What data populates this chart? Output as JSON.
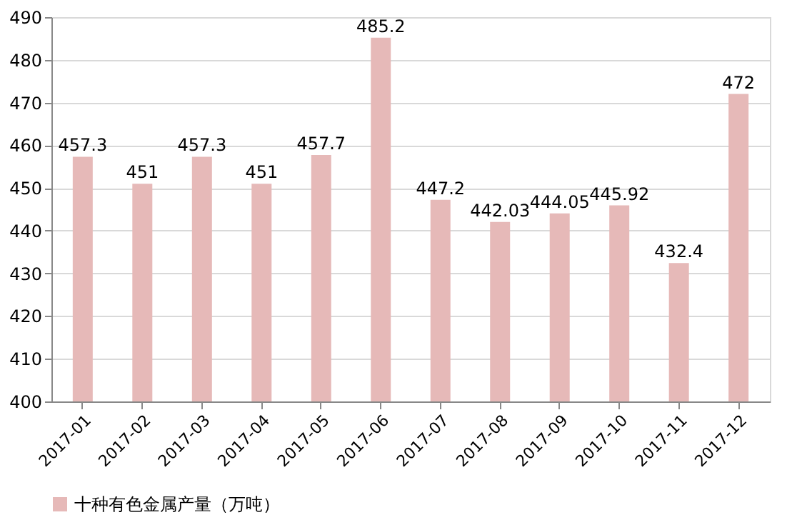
{
  "chart_data": {
    "type": "bar",
    "categories": [
      "2017-01",
      "2017-02",
      "2017-03",
      "2017-04",
      "2017-05",
      "2017-06",
      "2017-07",
      "2017-08",
      "2017-09",
      "2017-10",
      "2017-11",
      "2017-12"
    ],
    "series": [
      {
        "name": "十种有色金属产量（万吨）",
        "color": "#e6b9b8",
        "values": [
          457.3,
          451,
          457.3,
          451,
          457.7,
          485.2,
          447.2,
          442.03,
          444.05,
          445.92,
          432.4,
          472
        ]
      }
    ],
    "ylim": [
      400,
      490
    ],
    "yticks": [
      400,
      410,
      420,
      430,
      440,
      450,
      460,
      470,
      480,
      490
    ],
    "grid": "y",
    "legend": "bottom",
    "data_labels": true
  }
}
